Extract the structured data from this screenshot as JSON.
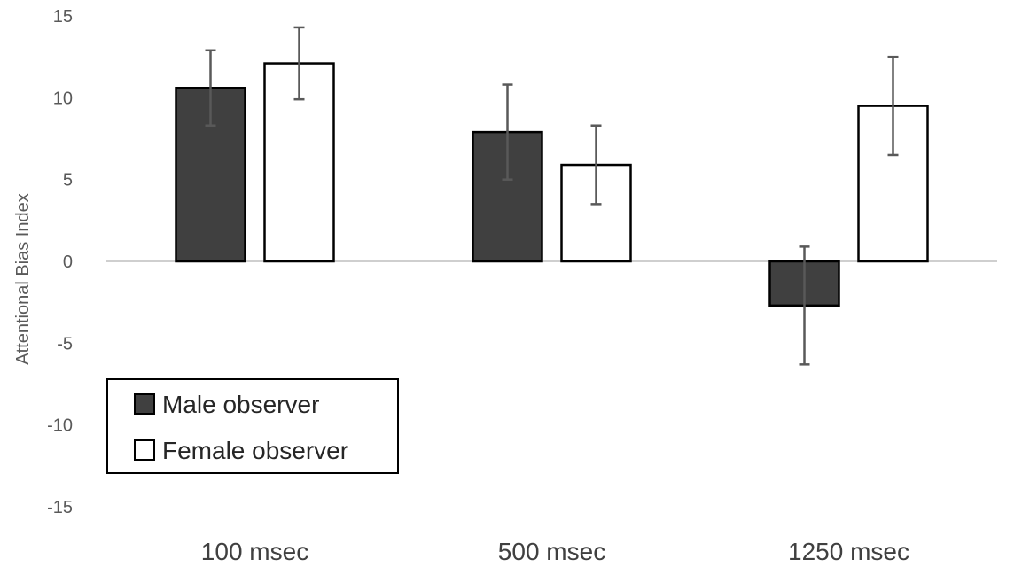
{
  "chart_data": {
    "type": "bar",
    "title": "",
    "xlabel": "",
    "ylabel": "Attentional Bias Index",
    "ylim": [
      -15,
      15
    ],
    "yticks": [
      -15,
      -10,
      -5,
      0,
      5,
      10,
      15
    ],
    "categories": [
      "100 msec",
      "500 msec",
      "1250 msec"
    ],
    "series": [
      {
        "name": "Male observer",
        "color": "#404040",
        "values": [
          10.6,
          7.9,
          -2.7
        ],
        "error": [
          2.3,
          2.9,
          3.6
        ]
      },
      {
        "name": "Female observer",
        "color": "#ffffff",
        "values": [
          12.1,
          5.9,
          9.5
        ],
        "error": [
          2.2,
          2.4,
          3.0
        ]
      }
    ],
    "grid": false,
    "legend": "bottom-left"
  }
}
